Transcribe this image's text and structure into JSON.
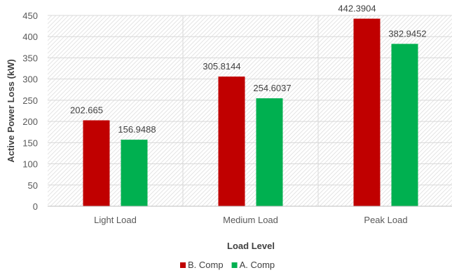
{
  "chart_data": {
    "type": "bar",
    "categories": [
      "Light Load",
      "Medium Load",
      "Peak Load"
    ],
    "series": [
      {
        "name": "B. Comp",
        "color": "#c00000",
        "values": [
          202.665,
          305.8144,
          442.3904
        ]
      },
      {
        "name": "A. Comp",
        "color": "#00b050",
        "values": [
          156.9488,
          254.6037,
          382.9452
        ]
      }
    ],
    "data_labels": [
      [
        "202.665",
        "305.8144",
        "442.3904"
      ],
      [
        "156.9488",
        "254.6037",
        "382.9452"
      ]
    ],
    "xlabel": "Load Level",
    "ylabel": "Active Power Loss (kW)",
    "ylim": [
      0,
      450
    ],
    "yticks": [
      0,
      50,
      100,
      150,
      200,
      250,
      300,
      350,
      400,
      450
    ],
    "grid": true,
    "legend": "bottom-center"
  }
}
